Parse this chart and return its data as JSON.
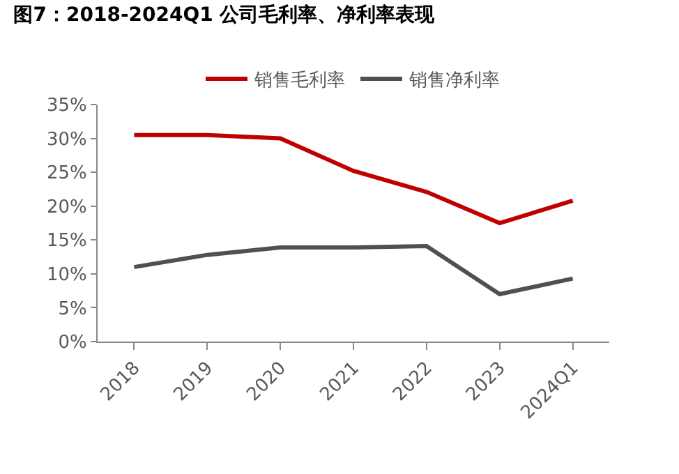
{
  "chart_data": {
    "type": "line",
    "title": "图7：2018-2024Q1 公司毛利率、净利率表现",
    "categories": [
      "2018",
      "2019",
      "2020",
      "2021",
      "2022",
      "2023",
      "2024Q1"
    ],
    "series": [
      {
        "name": "销售毛利率",
        "color": "#c00000",
        "values": [
          30.5,
          30.5,
          30.0,
          25.2,
          22.1,
          17.5,
          20.8
        ]
      },
      {
        "name": "销售净利率",
        "color": "#505050",
        "values": [
          11.0,
          12.8,
          13.9,
          13.9,
          14.1,
          7.0,
          9.3
        ]
      }
    ],
    "ylim": [
      0,
      35
    ],
    "yticks": [
      {
        "value": 0,
        "label": "0%"
      },
      {
        "value": 5,
        "label": "5%"
      },
      {
        "value": 10,
        "label": "10%"
      },
      {
        "value": 15,
        "label": "15%"
      },
      {
        "value": 20,
        "label": "20%"
      },
      {
        "value": 25,
        "label": "25%"
      },
      {
        "value": 30,
        "label": "30%"
      },
      {
        "value": 35,
        "label": "35%"
      }
    ],
    "grid": false,
    "legend": "top",
    "marker": "none",
    "line_style": "solid"
  }
}
